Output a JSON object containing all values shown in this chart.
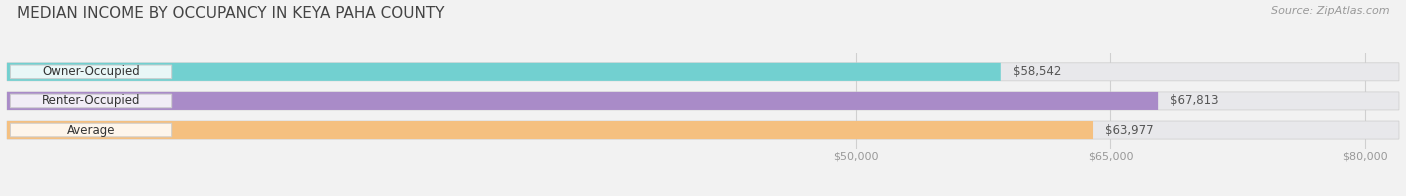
{
  "title": "MEDIAN INCOME BY OCCUPANCY IN KEYA PAHA COUNTY",
  "source": "Source: ZipAtlas.com",
  "categories": [
    "Owner-Occupied",
    "Renter-Occupied",
    "Average"
  ],
  "values": [
    58542,
    67813,
    63977
  ],
  "bar_colors": [
    "#72d0d0",
    "#a98bc8",
    "#f5c080"
  ],
  "bar_bg_color": "#e8e8eb",
  "value_labels": [
    "$58,542",
    "$67,813",
    "$63,977"
  ],
  "xlim": [
    0,
    82000
  ],
  "xticks": [
    50000,
    65000,
    80000
  ],
  "xtick_labels": [
    "$50,000",
    "$65,000",
    "$80,000"
  ],
  "title_fontsize": 11,
  "source_fontsize": 8,
  "label_fontsize": 8.5,
  "tick_fontsize": 8,
  "bar_height": 0.62,
  "bg_color": "#f2f2f2",
  "value_label_color": "#555555",
  "category_label_color": "#333333",
  "axis_label_color": "#999999",
  "grid_color": "#d0d0d0",
  "label_pill_color": "#ffffff",
  "label_pill_alpha": 0.85
}
